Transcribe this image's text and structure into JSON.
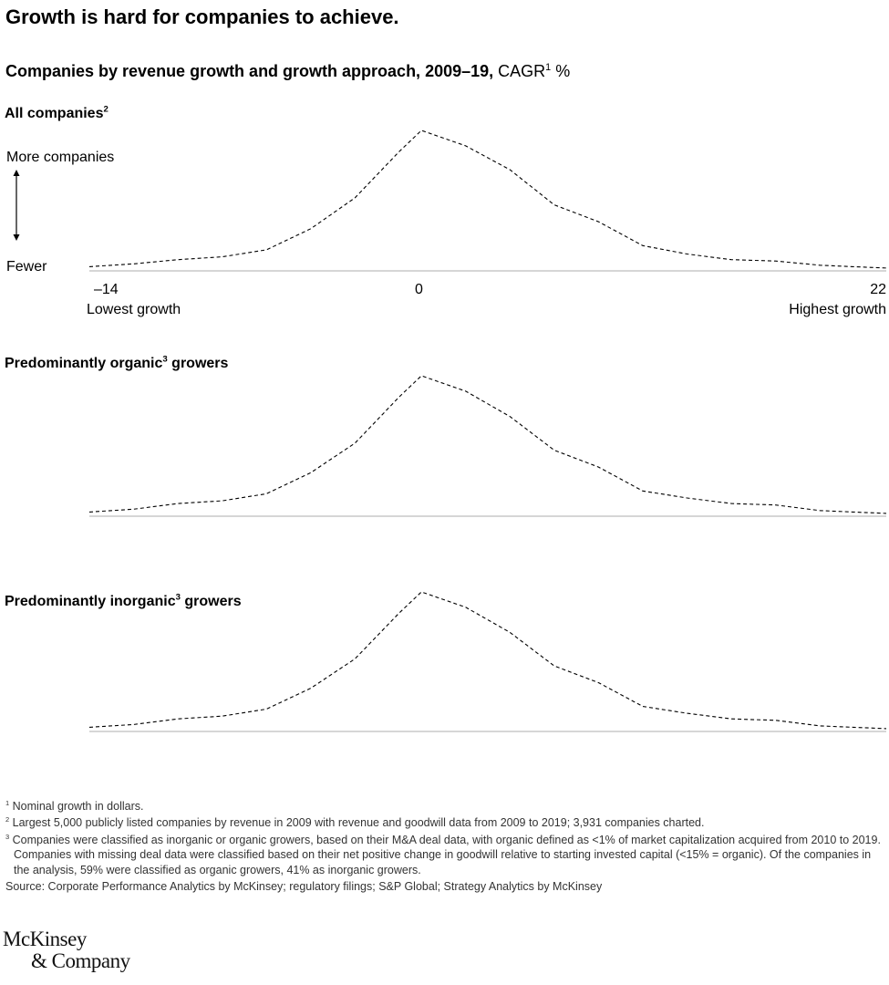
{
  "header": {
    "title": "Growth is hard for companies to achieve.",
    "subtitle_bold": "Companies by revenue growth and growth approach, 2009–19,",
    "subtitle_unit": "CAGR",
    "subtitle_unit_sup": "1",
    "subtitle_unit_tail": " %"
  },
  "yaxis": {
    "top_label": "More companies",
    "bottom_label": "Fewer"
  },
  "xaxis": {
    "min_label": "–14",
    "zero_label": "0",
    "max_label": "22",
    "low_caption": "Lowest growth",
    "high_caption": "Highest growth"
  },
  "panels": [
    {
      "title": "All companies",
      "sup": "2"
    },
    {
      "title_pre": "Predominantly organic",
      "sup": "3",
      "title_post": " growers"
    },
    {
      "title_pre": "Predominantly inorganic",
      "sup": "3",
      "title_post": " growers"
    }
  ],
  "colors": {
    "line": "#000000",
    "baseline": "#bdbdbd"
  },
  "chart_data": [
    {
      "type": "line",
      "title": "All companies",
      "xlabel": "CAGR %",
      "ylabel": "",
      "xlim": [
        -14,
        22
      ],
      "ylim": [
        0,
        100
      ],
      "y_scale_note": "relative number of companies; no numeric y ticks",
      "x": [
        -14,
        -12,
        -10,
        -8,
        -6,
        -4,
        -2,
        0,
        1,
        3,
        5,
        7,
        9,
        11,
        13,
        15,
        17,
        19,
        20.5,
        22
      ],
      "values": [
        3,
        5,
        8,
        10,
        15,
        30,
        52,
        85,
        100,
        89,
        72,
        47,
        35,
        18,
        12,
        8,
        7,
        4,
        3,
        2
      ]
    },
    {
      "type": "line",
      "title": "Predominantly organic growers",
      "xlabel": "CAGR %",
      "ylabel": "",
      "xlim": [
        -14,
        22
      ],
      "ylim": [
        0,
        100
      ],
      "x": [
        -14,
        -12,
        -10,
        -8,
        -6,
        -4,
        -2,
        0,
        1,
        3,
        5,
        7,
        9,
        11,
        13,
        15,
        17,
        19,
        20.5,
        22
      ],
      "values": [
        3,
        5,
        9,
        11,
        16,
        31,
        52,
        85,
        100,
        89,
        71,
        47,
        35,
        18,
        13,
        9,
        8,
        4,
        3,
        2
      ]
    },
    {
      "type": "line",
      "title": "Predominantly inorganic growers",
      "xlabel": "CAGR %",
      "ylabel": "",
      "xlim": [
        -14,
        22
      ],
      "ylim": [
        0,
        100
      ],
      "x": [
        -14,
        -12,
        -10,
        -8,
        -6,
        -4,
        -2,
        0,
        1,
        3,
        5,
        7,
        9,
        11,
        13,
        15,
        17,
        19,
        20.5,
        22
      ],
      "values": [
        3,
        5,
        9,
        11,
        16,
        31,
        52,
        85,
        100,
        89,
        71,
        47,
        35,
        18,
        13,
        9,
        8,
        4,
        3,
        2
      ]
    }
  ],
  "footnotes": [
    {
      "mark": "1",
      "text": "Nominal growth in dollars."
    },
    {
      "mark": "2",
      "text": "Largest 5,000 publicly listed companies by revenue in 2009 with revenue and goodwill data from 2009 to 2019; 3,931 companies charted."
    },
    {
      "mark": "3",
      "text": "Companies were classified as inorganic or organic growers, based on their M&A deal data, with organic defined as <1% of market capitalization acquired from 2010 to 2019. Companies with missing deal data were classified based on their net positive change in goodwill relative to starting invested capital (<15% = organic). Of the companies in the analysis, 59% were classified as organic growers, 41% as inorganic growers."
    }
  ],
  "source": "Source: Corporate Performance Analytics by McKinsey; regulatory filings; S&P Global; Strategy Analytics by McKinsey",
  "logo": {
    "line1": "McKinsey",
    "line2": "& Company"
  }
}
